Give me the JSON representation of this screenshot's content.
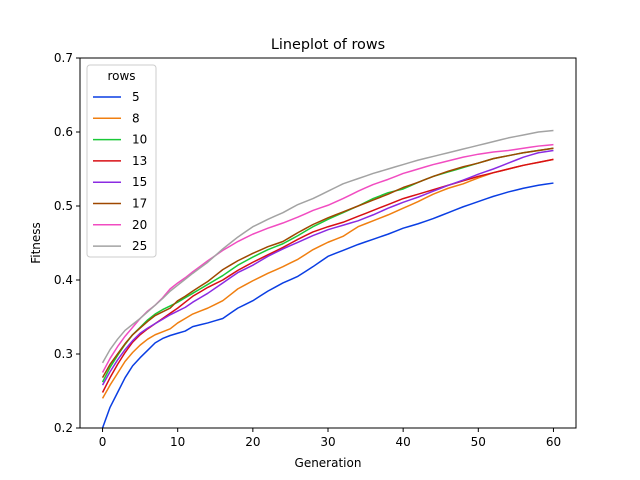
{
  "chart_data": {
    "type": "line",
    "title": "Lineplot of rows",
    "xlabel": "Generation",
    "ylabel": "Fitness",
    "xlim": [
      -3,
      63
    ],
    "ylim": [
      0.2,
      0.7
    ],
    "x_ticks": [
      0,
      10,
      20,
      30,
      40,
      50,
      60
    ],
    "y_ticks": [
      0.2,
      0.3,
      0.4,
      0.5,
      0.6,
      0.7
    ],
    "grid": false,
    "legend": {
      "title": "rows",
      "placement": "top-left"
    },
    "series": [
      {
        "name": "5",
        "color": "#0a3ee3",
        "keypoints": [
          [
            0,
            0.2
          ],
          [
            1,
            0.228
          ],
          [
            2,
            0.248
          ],
          [
            3,
            0.268
          ],
          [
            4,
            0.284
          ],
          [
            5,
            0.295
          ],
          [
            6,
            0.305
          ],
          [
            7,
            0.315
          ],
          [
            8,
            0.321
          ],
          [
            9,
            0.325
          ],
          [
            10,
            0.328
          ],
          [
            11,
            0.331
          ],
          [
            12,
            0.337
          ],
          [
            14,
            0.342
          ],
          [
            16,
            0.348
          ],
          [
            18,
            0.362
          ],
          [
            20,
            0.372
          ],
          [
            22,
            0.385
          ],
          [
            24,
            0.396
          ],
          [
            26,
            0.405
          ],
          [
            28,
            0.418
          ],
          [
            30,
            0.432
          ],
          [
            32,
            0.44
          ],
          [
            34,
            0.448
          ],
          [
            36,
            0.455
          ],
          [
            38,
            0.462
          ],
          [
            40,
            0.47
          ],
          [
            42,
            0.476
          ],
          [
            44,
            0.483
          ],
          [
            46,
            0.491
          ],
          [
            48,
            0.499
          ],
          [
            50,
            0.506
          ],
          [
            52,
            0.513
          ],
          [
            54,
            0.519
          ],
          [
            56,
            0.524
          ],
          [
            58,
            0.528
          ],
          [
            60,
            0.531
          ]
        ]
      },
      {
        "name": "8",
        "color": "#f07f10",
        "keypoints": [
          [
            0,
            0.24
          ],
          [
            1,
            0.258
          ],
          [
            2,
            0.274
          ],
          [
            3,
            0.29
          ],
          [
            4,
            0.302
          ],
          [
            5,
            0.312
          ],
          [
            6,
            0.32
          ],
          [
            7,
            0.326
          ],
          [
            8,
            0.33
          ],
          [
            9,
            0.334
          ],
          [
            10,
            0.342
          ],
          [
            11,
            0.348
          ],
          [
            12,
            0.354
          ],
          [
            14,
            0.362
          ],
          [
            16,
            0.372
          ],
          [
            18,
            0.388
          ],
          [
            20,
            0.399
          ],
          [
            22,
            0.409
          ],
          [
            24,
            0.418
          ],
          [
            26,
            0.428
          ],
          [
            28,
            0.441
          ],
          [
            30,
            0.451
          ],
          [
            32,
            0.459
          ],
          [
            34,
            0.472
          ],
          [
            36,
            0.48
          ],
          [
            38,
            0.488
          ],
          [
            40,
            0.497
          ],
          [
            42,
            0.506
          ],
          [
            44,
            0.516
          ],
          [
            46,
            0.524
          ],
          [
            48,
            0.53
          ],
          [
            50,
            0.538
          ],
          [
            52,
            0.545
          ],
          [
            54,
            0.55
          ],
          [
            56,
            0.555
          ],
          [
            58,
            0.559
          ],
          [
            60,
            0.563
          ]
        ]
      },
      {
        "name": "10",
        "color": "#1ac938",
        "keypoints": [
          [
            0,
            0.262
          ],
          [
            1,
            0.282
          ],
          [
            2,
            0.298
          ],
          [
            3,
            0.313
          ],
          [
            4,
            0.326
          ],
          [
            5,
            0.336
          ],
          [
            6,
            0.346
          ],
          [
            7,
            0.354
          ],
          [
            8,
            0.36
          ],
          [
            9,
            0.365
          ],
          [
            10,
            0.37
          ],
          [
            11,
            0.376
          ],
          [
            12,
            0.382
          ],
          [
            14,
            0.394
          ],
          [
            16,
            0.406
          ],
          [
            18,
            0.42
          ],
          [
            20,
            0.431
          ],
          [
            22,
            0.441
          ],
          [
            24,
            0.449
          ],
          [
            26,
            0.46
          ],
          [
            28,
            0.472
          ],
          [
            30,
            0.482
          ],
          [
            32,
            0.491
          ],
          [
            34,
            0.5
          ],
          [
            36,
            0.51
          ],
          [
            38,
            0.518
          ],
          [
            40,
            0.523
          ],
          [
            42,
            0.532
          ],
          [
            44,
            0.54
          ],
          [
            46,
            0.546
          ],
          [
            48,
            0.552
          ],
          [
            50,
            0.558
          ],
          [
            52,
            0.564
          ],
          [
            54,
            0.568
          ],
          [
            56,
            0.572
          ],
          [
            58,
            0.575
          ],
          [
            60,
            0.578
          ]
        ]
      },
      {
        "name": "13",
        "color": "#d80f14",
        "keypoints": [
          [
            0,
            0.248
          ],
          [
            1,
            0.268
          ],
          [
            2,
            0.286
          ],
          [
            3,
            0.302
          ],
          [
            4,
            0.316
          ],
          [
            5,
            0.326
          ],
          [
            6,
            0.334
          ],
          [
            7,
            0.341
          ],
          [
            8,
            0.348
          ],
          [
            9,
            0.355
          ],
          [
            10,
            0.362
          ],
          [
            11,
            0.37
          ],
          [
            12,
            0.378
          ],
          [
            14,
            0.39
          ],
          [
            16,
            0.4
          ],
          [
            18,
            0.413
          ],
          [
            20,
            0.424
          ],
          [
            22,
            0.434
          ],
          [
            24,
            0.444
          ],
          [
            26,
            0.455
          ],
          [
            28,
            0.465
          ],
          [
            30,
            0.472
          ],
          [
            32,
            0.478
          ],
          [
            34,
            0.486
          ],
          [
            36,
            0.494
          ],
          [
            38,
            0.502
          ],
          [
            40,
            0.51
          ],
          [
            42,
            0.516
          ],
          [
            44,
            0.522
          ],
          [
            46,
            0.528
          ],
          [
            48,
            0.534
          ],
          [
            50,
            0.54
          ],
          [
            52,
            0.545
          ],
          [
            54,
            0.55
          ],
          [
            56,
            0.555
          ],
          [
            58,
            0.559
          ],
          [
            60,
            0.563
          ]
        ]
      },
      {
        "name": "15",
        "color": "#8b2be2",
        "keypoints": [
          [
            0,
            0.258
          ],
          [
            1,
            0.276
          ],
          [
            2,
            0.292
          ],
          [
            3,
            0.306
          ],
          [
            4,
            0.318
          ],
          [
            5,
            0.328
          ],
          [
            6,
            0.335
          ],
          [
            7,
            0.341
          ],
          [
            8,
            0.347
          ],
          [
            9,
            0.353
          ],
          [
            10,
            0.358
          ],
          [
            11,
            0.363
          ],
          [
            12,
            0.37
          ],
          [
            14,
            0.382
          ],
          [
            16,
            0.396
          ],
          [
            18,
            0.41
          ],
          [
            20,
            0.42
          ],
          [
            22,
            0.432
          ],
          [
            24,
            0.442
          ],
          [
            26,
            0.451
          ],
          [
            28,
            0.46
          ],
          [
            30,
            0.468
          ],
          [
            32,
            0.474
          ],
          [
            34,
            0.48
          ],
          [
            36,
            0.488
          ],
          [
            38,
            0.497
          ],
          [
            40,
            0.505
          ],
          [
            42,
            0.512
          ],
          [
            44,
            0.52
          ],
          [
            46,
            0.528
          ],
          [
            48,
            0.535
          ],
          [
            50,
            0.543
          ],
          [
            52,
            0.55
          ],
          [
            54,
            0.558
          ],
          [
            56,
            0.566
          ],
          [
            58,
            0.572
          ],
          [
            60,
            0.575
          ]
        ]
      },
      {
        "name": "17",
        "color": "#9f4800",
        "keypoints": [
          [
            0,
            0.268
          ],
          [
            1,
            0.286
          ],
          [
            2,
            0.3
          ],
          [
            3,
            0.314
          ],
          [
            4,
            0.326
          ],
          [
            5,
            0.335
          ],
          [
            6,
            0.344
          ],
          [
            7,
            0.352
          ],
          [
            8,
            0.357
          ],
          [
            9,
            0.362
          ],
          [
            10,
            0.372
          ],
          [
            11,
            0.378
          ],
          [
            12,
            0.385
          ],
          [
            14,
            0.398
          ],
          [
            16,
            0.414
          ],
          [
            18,
            0.426
          ],
          [
            20,
            0.436
          ],
          [
            22,
            0.445
          ],
          [
            24,
            0.452
          ],
          [
            26,
            0.464
          ],
          [
            28,
            0.475
          ],
          [
            30,
            0.484
          ],
          [
            32,
            0.492
          ],
          [
            34,
            0.5
          ],
          [
            36,
            0.508
          ],
          [
            38,
            0.516
          ],
          [
            40,
            0.525
          ],
          [
            42,
            0.532
          ],
          [
            44,
            0.54
          ],
          [
            46,
            0.547
          ],
          [
            48,
            0.553
          ],
          [
            50,
            0.558
          ],
          [
            52,
            0.564
          ],
          [
            54,
            0.568
          ],
          [
            56,
            0.572
          ],
          [
            58,
            0.575
          ],
          [
            60,
            0.578
          ]
        ]
      },
      {
        "name": "20",
        "color": "#f14cc1",
        "keypoints": [
          [
            0,
            0.275
          ],
          [
            1,
            0.294
          ],
          [
            2,
            0.31
          ],
          [
            3,
            0.324
          ],
          [
            4,
            0.336
          ],
          [
            5,
            0.348
          ],
          [
            6,
            0.358
          ],
          [
            7,
            0.366
          ],
          [
            8,
            0.376
          ],
          [
            9,
            0.388
          ],
          [
            10,
            0.396
          ],
          [
            11,
            0.403
          ],
          [
            12,
            0.411
          ],
          [
            14,
            0.426
          ],
          [
            16,
            0.44
          ],
          [
            18,
            0.452
          ],
          [
            20,
            0.462
          ],
          [
            22,
            0.47
          ],
          [
            24,
            0.477
          ],
          [
            26,
            0.485
          ],
          [
            28,
            0.494
          ],
          [
            30,
            0.501
          ],
          [
            32,
            0.51
          ],
          [
            34,
            0.52
          ],
          [
            36,
            0.529
          ],
          [
            38,
            0.536
          ],
          [
            40,
            0.544
          ],
          [
            42,
            0.55
          ],
          [
            44,
            0.556
          ],
          [
            46,
            0.561
          ],
          [
            48,
            0.566
          ],
          [
            50,
            0.57
          ],
          [
            52,
            0.573
          ],
          [
            54,
            0.575
          ],
          [
            56,
            0.578
          ],
          [
            58,
            0.581
          ],
          [
            60,
            0.583
          ]
        ]
      },
      {
        "name": "25",
        "color": "#a3a3a3",
        "keypoints": [
          [
            0,
            0.288
          ],
          [
            1,
            0.306
          ],
          [
            2,
            0.32
          ],
          [
            3,
            0.332
          ],
          [
            4,
            0.34
          ],
          [
            5,
            0.348
          ],
          [
            6,
            0.357
          ],
          [
            7,
            0.366
          ],
          [
            8,
            0.375
          ],
          [
            9,
            0.385
          ],
          [
            10,
            0.393
          ],
          [
            11,
            0.401
          ],
          [
            12,
            0.409
          ],
          [
            14,
            0.424
          ],
          [
            16,
            0.442
          ],
          [
            18,
            0.458
          ],
          [
            20,
            0.472
          ],
          [
            22,
            0.482
          ],
          [
            24,
            0.491
          ],
          [
            26,
            0.502
          ],
          [
            28,
            0.51
          ],
          [
            30,
            0.52
          ],
          [
            32,
            0.53
          ],
          [
            34,
            0.537
          ],
          [
            36,
            0.544
          ],
          [
            38,
            0.55
          ],
          [
            40,
            0.556
          ],
          [
            42,
            0.562
          ],
          [
            44,
            0.567
          ],
          [
            46,
            0.572
          ],
          [
            48,
            0.577
          ],
          [
            50,
            0.582
          ],
          [
            52,
            0.587
          ],
          [
            54,
            0.592
          ],
          [
            56,
            0.596
          ],
          [
            58,
            0.6
          ],
          [
            60,
            0.602
          ]
        ]
      }
    ]
  }
}
